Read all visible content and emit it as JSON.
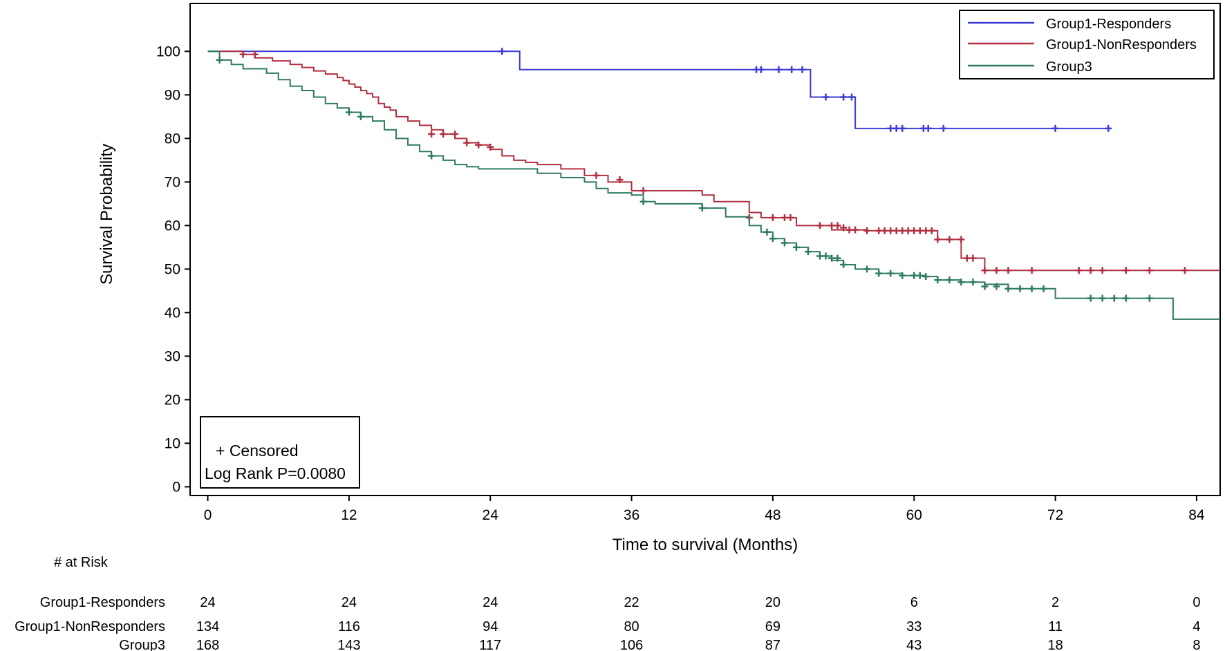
{
  "chart_data": {
    "type": "line",
    "title": "",
    "xlabel": "Time to survival (Months)",
    "ylabel": "Survival Probability",
    "xlim": [
      -1.5,
      86
    ],
    "ylim": [
      -2,
      111
    ],
    "x_ticks": [
      0,
      12,
      24,
      36,
      48,
      60,
      72,
      84
    ],
    "y_ticks": [
      0,
      10,
      20,
      30,
      40,
      50,
      60,
      70,
      80,
      90,
      100
    ],
    "grid": false,
    "legend": {
      "position": "top-right",
      "entries": [
        "Group1-Responders",
        "Group1-NonResponders",
        "Group3"
      ]
    },
    "annotations": {
      "censored_label": "+ Censored",
      "logrank_label": "Log Rank P=0.0080"
    },
    "series": [
      {
        "name": "Group1-Responders",
        "color": "#3b3bd6",
        "step_x": [
          0,
          26.5,
          51.2,
          55.0,
          76.5
        ],
        "step_y": [
          100,
          95.8,
          89.5,
          82.3,
          82.3
        ],
        "censored_x": [
          25,
          46.6,
          47.0,
          48.5,
          49.6,
          50.5,
          52.5,
          54.0,
          54.7,
          58.0,
          58.5,
          59.0,
          60.8,
          61.2,
          62.5,
          72.0,
          76.5
        ],
        "censored_y": [
          100,
          95.8,
          95.8,
          95.8,
          95.8,
          95.8,
          89.5,
          89.5,
          89.5,
          82.3,
          82.3,
          82.3,
          82.3,
          82.3,
          82.3,
          82.3,
          82.3
        ]
      },
      {
        "name": "Group1-NonResponders",
        "color": "#b03040",
        "step_x": [
          0,
          3,
          4,
          5.5,
          7,
          8,
          9,
          10,
          11,
          11.5,
          12,
          12.5,
          13,
          13.5,
          14,
          14.5,
          15,
          15.5,
          16,
          17,
          18,
          19,
          20,
          21,
          22,
          23,
          24,
          25,
          26,
          27,
          28,
          30,
          32,
          34,
          36,
          42,
          43,
          46,
          47,
          50,
          53,
          56,
          62,
          64,
          66,
          86
        ],
        "step_y": [
          100,
          99.3,
          98.5,
          97.8,
          97.0,
          96.3,
          95.5,
          94.8,
          94.0,
          93.3,
          92.5,
          91.8,
          91.0,
          90.3,
          89.5,
          88.0,
          87.2,
          86.5,
          85.0,
          84.0,
          83.0,
          82.0,
          81.0,
          80.0,
          79.0,
          78.5,
          77.5,
          76.0,
          75.0,
          74.5,
          74.0,
          73.0,
          71.5,
          70.0,
          68.0,
          67.0,
          65.5,
          63.0,
          61.8,
          60.0,
          59.0,
          58.8,
          56.8,
          52.5,
          49.7,
          49.7
        ],
        "censored_x": [
          3,
          4,
          19,
          20,
          21,
          22,
          23,
          24,
          33,
          35,
          37,
          46,
          48,
          49,
          49.5,
          52,
          53,
          53.5,
          54,
          54.5,
          55,
          56,
          57,
          57.5,
          58,
          58.5,
          59,
          59.5,
          60,
          60.5,
          61,
          61.5,
          62,
          63,
          64,
          64.5,
          65,
          66,
          67,
          68,
          70,
          74,
          75,
          76,
          78,
          80,
          83
        ],
        "censored_y": [
          99.3,
          99.3,
          81.0,
          81.0,
          81.0,
          79.0,
          78.5,
          78.0,
          71.5,
          70.5,
          68.0,
          61.8,
          61.8,
          61.8,
          61.8,
          60.0,
          60.0,
          60.0,
          59.5,
          59.0,
          59.0,
          58.8,
          58.8,
          58.8,
          58.8,
          58.8,
          58.8,
          58.8,
          58.8,
          58.8,
          58.8,
          58.8,
          56.8,
          56.8,
          56.8,
          52.5,
          52.5,
          49.7,
          49.7,
          49.7,
          49.7,
          49.7,
          49.7,
          49.7,
          49.7,
          49.7,
          49.7
        ]
      },
      {
        "name": "Group3",
        "color": "#2e7a62",
        "step_x": [
          0,
          1,
          2,
          3,
          5,
          6,
          7,
          8,
          9,
          10,
          11,
          12,
          13,
          14,
          15,
          16,
          17,
          18,
          19,
          20,
          21,
          22,
          23,
          24,
          28,
          30,
          32,
          33,
          34,
          36,
          37,
          38,
          42,
          44,
          46,
          47,
          48,
          49,
          50,
          51,
          52,
          53,
          54,
          55,
          57,
          59,
          61,
          62,
          64,
          66,
          68,
          72,
          82,
          86
        ],
        "step_y": [
          100,
          98.0,
          97.0,
          96.0,
          95.0,
          93.5,
          92.0,
          91.0,
          89.5,
          88.0,
          87.0,
          86.0,
          85.0,
          84.0,
          82.0,
          80.0,
          78.5,
          77.0,
          76.0,
          75.0,
          74.0,
          73.5,
          73.0,
          73.0,
          72.0,
          71.0,
          70.0,
          68.5,
          67.5,
          67.0,
          65.5,
          65.0,
          64.0,
          62.0,
          60.0,
          58.5,
          57.0,
          56.0,
          55.0,
          54.0,
          53.0,
          52.0,
          51.0,
          50.0,
          49.0,
          48.5,
          48.3,
          47.5,
          47.0,
          46.5,
          45.5,
          43.3,
          38.5,
          38.5
        ],
        "censored_x": [
          1,
          12,
          13,
          19,
          37,
          42,
          47.5,
          48,
          49,
          50,
          51,
          52,
          52.5,
          53,
          53.5,
          54,
          56,
          57,
          58,
          59,
          60,
          60.5,
          61,
          62,
          63,
          64,
          65,
          66,
          67,
          68,
          69,
          70,
          71,
          75,
          76,
          77,
          78,
          80
        ],
        "censored_y": [
          98.0,
          86.0,
          85.0,
          76.0,
          65.5,
          64.0,
          58.5,
          57.0,
          56.0,
          55.0,
          54.0,
          53.0,
          53.0,
          52.5,
          52.5,
          51.0,
          50.0,
          49.0,
          49.0,
          48.5,
          48.5,
          48.5,
          48.3,
          47.5,
          47.5,
          47.0,
          47.0,
          46.0,
          46.0,
          45.5,
          45.5,
          45.5,
          45.5,
          43.3,
          43.3,
          43.3,
          43.3,
          43.3
        ]
      }
    ]
  },
  "at_risk": {
    "title": "# at Risk",
    "times": [
      0,
      12,
      24,
      36,
      48,
      60,
      72,
      84
    ],
    "rows": [
      {
        "label": "Group1-Responders",
        "values": [
          "24",
          "24",
          "24",
          "22",
          "20",
          "6",
          "2",
          "0"
        ]
      },
      {
        "label": "Group1-NonResponders",
        "values": [
          "134",
          "116",
          "94",
          "80",
          "69",
          "33",
          "11",
          "4"
        ]
      },
      {
        "label": "Group3",
        "values": [
          "168",
          "143",
          "117",
          "106",
          "87",
          "43",
          "18",
          "8"
        ]
      }
    ]
  }
}
